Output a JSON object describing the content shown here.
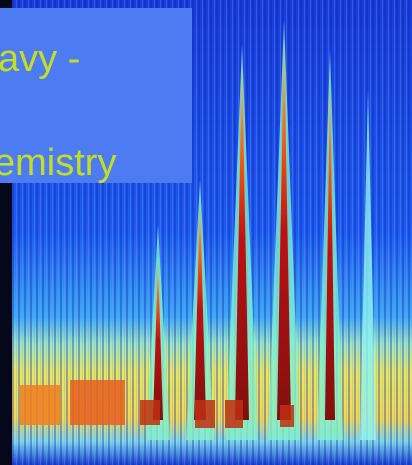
{
  "slide": {
    "lines": [
      "avy -",
      "emistry"
    ]
  }
}
